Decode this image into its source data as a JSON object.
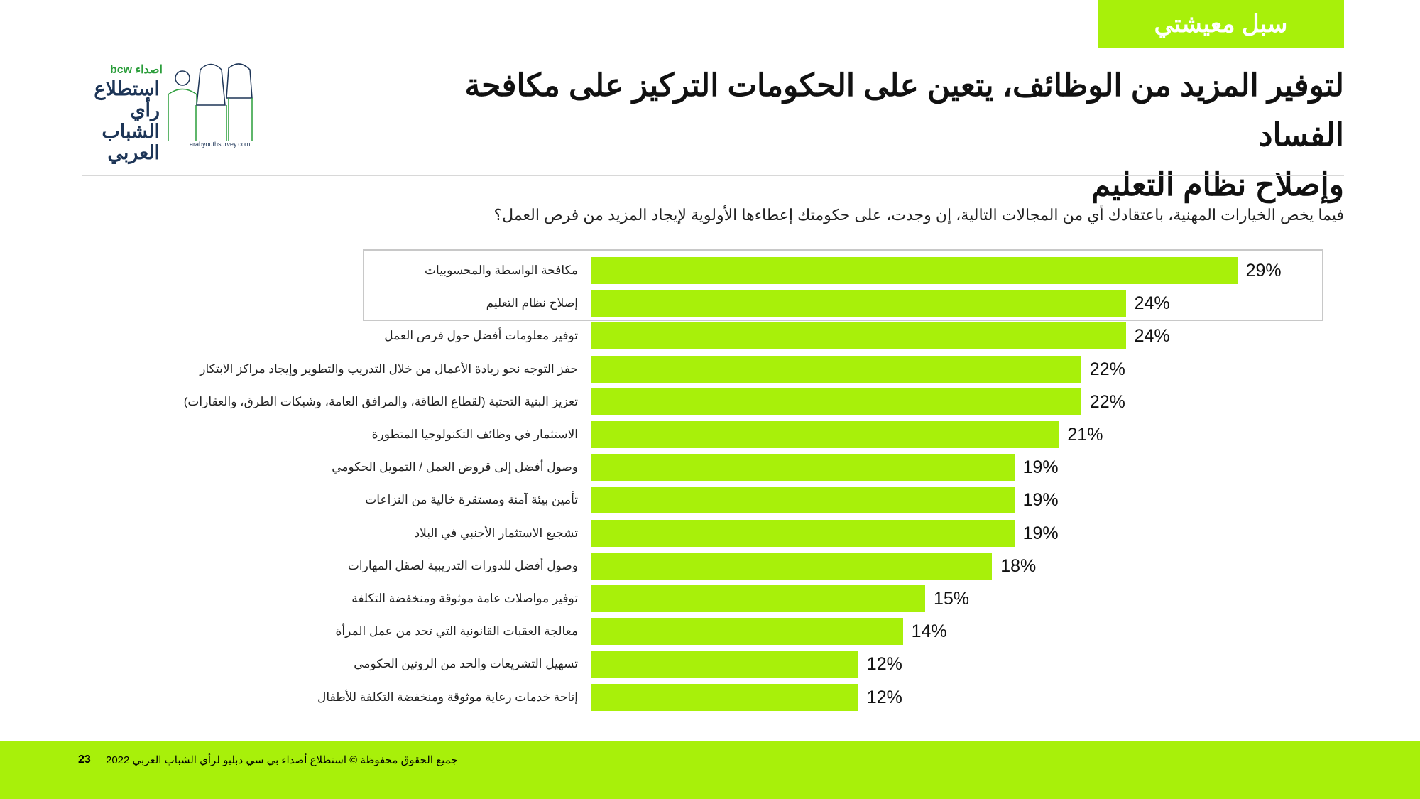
{
  "header": {
    "tab": "سبل معيشتي",
    "title_line1": "لتوفير المزيد من الوظائف، يتعين على الحكومات التركيز على مكافحة الفساد",
    "title_line2": "وإصلاح نظام التعليم"
  },
  "logo": {
    "brand": "bcw اصداء",
    "text": "استطلاع رأي الشباب العربي",
    "url": "arabyouthsurvey.com"
  },
  "question": "فيما يخص الخيارات المهنية، باعتقادك أي من المجالات التالية، إن وجدت، على حكومتك إعطاءها الأولوية لإيجاد المزيد من فرص العمل؟",
  "colors": {
    "accent": "#a8f00a"
  },
  "chart_data": {
    "type": "bar",
    "orientation": "horizontal",
    "unit": "%",
    "highlighted": [
      0,
      1
    ],
    "categories": [
      "مكافحة الواسطة والمحسوبيات",
      "إصلاح نظام التعليم",
      "توفير معلومات أفضل حول فرص العمل",
      "حفز التوجه نحو ريادة الأعمال من خلال التدريب والتطوير وإيجاد مراكز الابتكار",
      "تعزيز البنية التحتية (لقطاع الطاقة، والمرافق العامة، وشبكات الطرق، والعقارات)",
      "الاستثمار في وظائف التكنولوجيا المتطورة",
      "وصول أفضل إلى قروض العمل / التمويل الحكومي",
      "تأمين بيئة آمنة ومستقرة خالية من النزاعات",
      "تشجيع الاستثمار الأجنبي في البلاد",
      "وصول أفضل للدورات التدريبية لصقل المهارات",
      "توفير مواصلات عامة موثوقة ومنخفضة التكلفة",
      "معالجة العقبات القانونية التي تحد من عمل المرأة",
      "تسهيل التشريعات والحد من الروتين الحكومي",
      "إتاحة خدمات رعاية موثوقة ومنخفضة التكلفة للأطفال"
    ],
    "values": [
      29,
      24,
      24,
      22,
      22,
      21,
      19,
      19,
      19,
      18,
      15,
      14,
      12,
      12
    ],
    "labels": [
      "29%",
      "24%",
      "24%",
      "22%",
      "22%",
      "21%",
      "19%",
      "19%",
      "19%",
      "18%",
      "15%",
      "14%",
      "12%",
      "12%"
    ]
  },
  "footer": {
    "page": "23",
    "text": "جميع الحقوق محفوظة © استطلاع أصداء بي سي دبليو لرأي الشباب العربي 2022"
  }
}
